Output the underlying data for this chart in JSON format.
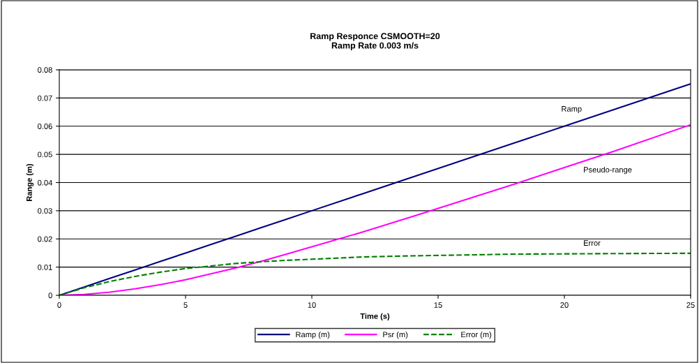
{
  "chart_data": {
    "type": "line",
    "title": "Ramp Responce CSMOOTH=20\nRamp Rate 0.003 m/s",
    "xlabel": "Time (s)",
    "ylabel": "Range (m)",
    "x": [
      0,
      1,
      2,
      3,
      4,
      5,
      6,
      7,
      8,
      9,
      10,
      12,
      14,
      16,
      18,
      20,
      22,
      25
    ],
    "series": [
      {
        "name": "Ramp (m)",
        "color": "#000080",
        "line_style": "solid",
        "values": [
          0,
          0.003,
          0.006,
          0.009,
          0.012,
          0.015,
          0.018,
          0.021,
          0.024,
          0.027,
          0.03,
          0.036,
          0.042,
          0.048,
          0.054,
          0.06,
          0.066,
          0.075
        ]
      },
      {
        "name": "Psr (m)",
        "color": "#ff00ff",
        "line_style": "solid",
        "values": [
          0,
          0.0003,
          0.0011,
          0.0023,
          0.0038,
          0.0055,
          0.0076,
          0.0097,
          0.0121,
          0.0146,
          0.0172,
          0.0224,
          0.028,
          0.0337,
          0.0394,
          0.0453,
          0.0512,
          0.0605
        ]
      },
      {
        "name": "Error (m)",
        "color": "#008000",
        "line_style": "dashed",
        "values": [
          0,
          0.0027,
          0.0049,
          0.0067,
          0.0082,
          0.0095,
          0.0104,
          0.0113,
          0.0119,
          0.0124,
          0.0128,
          0.0136,
          0.014,
          0.0143,
          0.0146,
          0.0147,
          0.0148,
          0.0149
        ]
      }
    ],
    "annotations": [
      "Ramp",
      "Pseudo-range",
      "Error"
    ],
    "xlim": [
      0,
      25
    ],
    "xticks": [
      0,
      5,
      10,
      15,
      20,
      25
    ],
    "ylim": [
      0,
      0.08
    ],
    "yticks": [
      0,
      0.01,
      0.02,
      0.03,
      0.04,
      0.05,
      0.06,
      0.07,
      0.08
    ],
    "grid": "y",
    "legend": "bottom",
    "marker": "none"
  }
}
